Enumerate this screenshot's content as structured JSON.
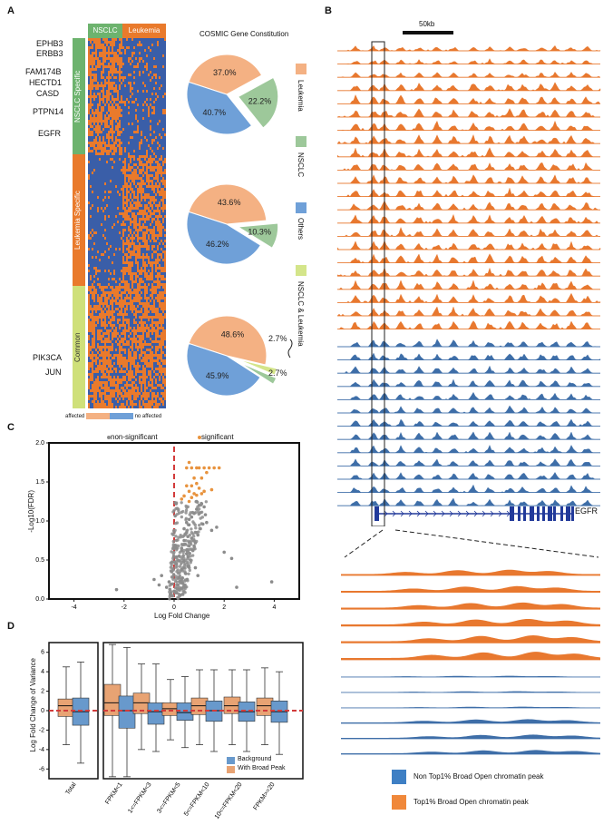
{
  "panels": {
    "a": "A",
    "b": "B",
    "c": "C",
    "d": "D"
  },
  "panel_a": {
    "groups_top": [
      "NSCLC",
      "Leukemia"
    ],
    "side_groups": [
      "NSCLC Specific",
      "Leukemia Specific",
      "Common"
    ],
    "genes_top": [
      "EPHB3",
      "ERBB3",
      "FAM174B",
      "HECTD1",
      "CASD",
      "PTPN14",
      "EGFR"
    ],
    "genes_bottom": [
      "PIK3CA",
      "JUN"
    ],
    "heat_legend": {
      "low": "affected",
      "high": "no affected"
    },
    "pie_title": "COSMIC Gene Constitution",
    "pies": [
      {
        "labels": [
          "37.0%",
          "22.2%",
          "40.7%"
        ],
        "values": [
          37.0,
          22.2,
          40.7
        ]
      },
      {
        "labels": [
          "43.6%",
          "10.3%",
          "46.2%"
        ],
        "values": [
          43.6,
          10.3,
          46.2
        ]
      },
      {
        "labels": [
          "48.6%",
          "2.7%",
          "2.7%",
          "45.9%"
        ],
        "values": [
          48.6,
          2.7,
          2.7,
          45.9
        ]
      }
    ],
    "legend": [
      "Leukemia",
      "NSCLC",
      "Others",
      "NSCLC & Leukemia"
    ],
    "colors": {
      "leukemia": "#f4b183",
      "nsclc": "#9dc89a",
      "others": "#6fa0d8",
      "both": "#d4e58a",
      "heat_orange": "#e97a2c",
      "heat_blue": "#3a5ea8"
    }
  },
  "panel_b": {
    "scale_label": "50kb",
    "gene": "EGFR",
    "legend": [
      "Non Top1% Broad Open chromatin peak",
      "Top1% Broad Open chromatin peak"
    ],
    "colors": {
      "orange": "#e8782f",
      "blue": "#3e6ea8"
    }
  },
  "chart_data": [
    {
      "type": "scatter",
      "title": "",
      "xlabel": "Log Fold Change",
      "ylabel": "-Log10(FDR)",
      "xlim": [
        -5,
        5
      ],
      "ylim": [
        0,
        2.0
      ],
      "xticks": [
        "-4",
        "-2",
        "0",
        "2",
        "4"
      ],
      "yticks": [
        "0.0",
        "0.5",
        "1.0",
        "1.5",
        "2.0"
      ],
      "legend": [
        "non-significant",
        "significant"
      ],
      "series": [
        {
          "name": "significant",
          "color": "#e8933e",
          "x": [
            0.5,
            0.7,
            0.9,
            1.0,
            1.2,
            1.4,
            1.6,
            1.8,
            0.6,
            0.8,
            1.1,
            1.3,
            0.5,
            0.7,
            0.9,
            1.0,
            0.6,
            0.8,
            1.2,
            1.5,
            0.4,
            0.7,
            0.9,
            1.1,
            0.3,
            0.6
          ],
          "y": [
            1.68,
            1.68,
            1.68,
            1.68,
            1.68,
            1.68,
            1.68,
            1.68,
            1.75,
            1.55,
            1.55,
            1.62,
            1.45,
            1.45,
            1.48,
            1.42,
            1.38,
            1.35,
            1.38,
            1.4,
            1.32,
            1.3,
            1.33,
            1.35,
            1.28,
            1.25
          ]
        },
        {
          "name": "non-significant",
          "color": "#8c8c8c",
          "x": [
            -2.3,
            -0.8,
            -0.6,
            -0.5,
            -0.3,
            -0.2,
            -0.1,
            0.0,
            0.1,
            0.2,
            0.3,
            0.4,
            0.5,
            0.6,
            0.7,
            0.8,
            0.9,
            1.0,
            1.1,
            1.2,
            1.3,
            1.5,
            1.7,
            2.0,
            2.3,
            2.5,
            3.9,
            0.2,
            0.3,
            0.4,
            0.5,
            0.6,
            0.1,
            0.2,
            0.35,
            0.45,
            0.55,
            0.65,
            0.75,
            0.85,
            0.95,
            0.25,
            0.15,
            0.05,
            -0.05,
            -0.15,
            0.4,
            0.5,
            0.6,
            0.7,
            0.8,
            0.3,
            0.45,
            0.55,
            1.05,
            1.15,
            1.25,
            0.9,
            0.85,
            0.95
          ],
          "y": [
            0.12,
            0.25,
            0.18,
            0.3,
            0.15,
            0.22,
            0.35,
            0.1,
            0.45,
            0.55,
            0.65,
            0.75,
            0.85,
            0.95,
            1.05,
            1.1,
            1.15,
            1.2,
            1.22,
            1.18,
            0.98,
            0.88,
            0.92,
            0.6,
            0.52,
            0.15,
            0.22,
            0.28,
            0.38,
            0.48,
            0.58,
            0.68,
            0.08,
            0.12,
            0.2,
            0.33,
            0.42,
            0.5,
            0.62,
            0.72,
            0.82,
            0.05,
            0.18,
            0.08,
            0.04,
            0.06,
            0.9,
            0.98,
            1.02,
            0.78,
            0.68,
            0.62,
            0.7,
            0.8,
            0.9,
            0.96,
            1.08,
            1.25,
            0.4,
            0.3
          ]
        }
      ]
    },
    {
      "type": "box",
      "title": "",
      "xlabel": "",
      "ylabel": "Log Fold Change of Variance",
      "ylim": [
        -7,
        7
      ],
      "yticks": [
        "-6",
        "-4",
        "-2",
        "0",
        "2",
        "4",
        "6"
      ],
      "categories": [
        "Total",
        "FPKM<1",
        "1<=FPKM<3",
        "3<=FPKM<5",
        "5<=FPKM<10",
        "10<=FPKM<20",
        "FPKM>=20"
      ],
      "legend": [
        "Background",
        "With Broad Peak"
      ],
      "series": [
        {
          "name": "With Broad Peak",
          "color": "#e8a373",
          "boxes": [
            [
              -3.5,
              -0.6,
              0.5,
              1.2,
              4.5
            ],
            [
              -6.8,
              -0.5,
              0.8,
              2.7,
              6.8
            ],
            [
              -4.0,
              -0.3,
              0.8,
              1.8,
              4.8
            ],
            [
              -3.0,
              -0.5,
              0.2,
              0.8,
              3.2
            ],
            [
              -3.5,
              -0.4,
              0.5,
              1.3,
              4.2
            ],
            [
              -3.5,
              -0.3,
              0.5,
              1.4,
              4.2
            ],
            [
              -3.5,
              -0.5,
              0.5,
              1.3,
              4.4
            ]
          ]
        },
        {
          "name": "Background",
          "color": "#6899cc",
          "boxes": [
            [
              -5.4,
              -1.5,
              -0.1,
              1.3,
              5.0
            ],
            [
              -6.8,
              -1.8,
              0.0,
              1.5,
              6.5
            ],
            [
              -4.2,
              -1.4,
              -0.1,
              0.8,
              4.8
            ],
            [
              -3.8,
              -1.0,
              -0.2,
              0.8,
              3.5
            ],
            [
              -4.2,
              -1.1,
              0.0,
              1.0,
              4.2
            ],
            [
              -4.2,
              -1.1,
              -0.1,
              0.9,
              4.2
            ],
            [
              -4.5,
              -1.2,
              -0.1,
              1.0,
              4.0
            ]
          ]
        }
      ]
    }
  ]
}
